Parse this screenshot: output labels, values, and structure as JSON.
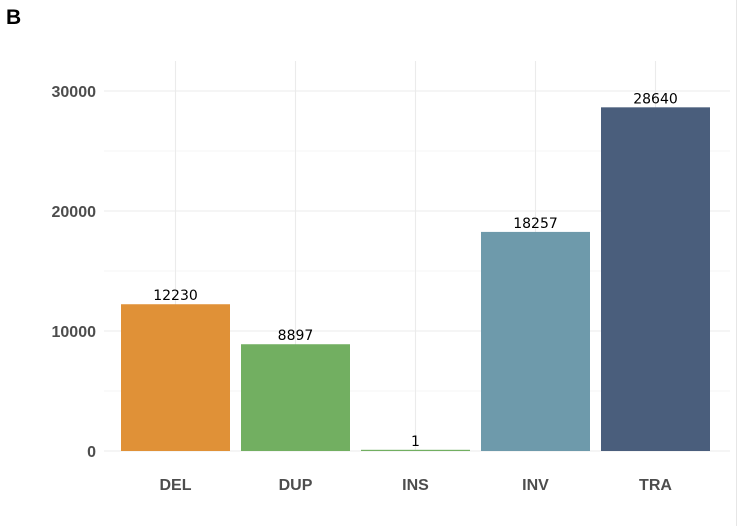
{
  "panel_label": "B",
  "chart_data": {
    "type": "bar",
    "title": "",
    "xlabel": "",
    "ylabel": "",
    "categories": [
      "DEL",
      "DUP",
      "INS",
      "INV",
      "TRA"
    ],
    "values": [
      12230,
      8897,
      1,
      18257,
      28640
    ],
    "data_labels": [
      "12230",
      "8897",
      "1",
      "18257",
      "28640"
    ],
    "colors": [
      "#E09137",
      "#72AF61",
      "#72AF61",
      "#6E9AAB",
      "#4A5E7C"
    ],
    "ylim": [
      0,
      30000
    ],
    "yticks": [
      0,
      10000,
      20000,
      30000
    ],
    "ytick_labels": [
      "0",
      "10000",
      "20000",
      "30000"
    ],
    "grid": true,
    "legend": "none"
  }
}
